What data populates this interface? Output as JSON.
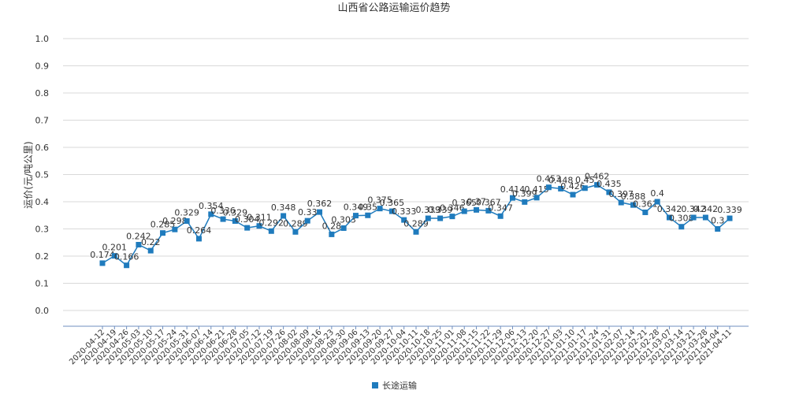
{
  "chart_data": {
    "type": "line",
    "title": "山西省公路运输运价趋势",
    "ylabel": "运价(元/吨公里)",
    "xlabel": "",
    "ylim": [
      0,
      1.0
    ],
    "yticks": [
      "0.0",
      "0.1",
      "0.2",
      "0.3",
      "0.4",
      "0.5",
      "0.6",
      "0.7",
      "0.8",
      "0.9",
      "1.0"
    ],
    "grid": "horizontal",
    "legend": "bottom-center",
    "colors": {
      "series": "#1f7bbd",
      "grid": "#d9d9d9",
      "axis": "#6f8fbf"
    },
    "x": [
      "2020-04-12",
      "2020-04-19",
      "2020-04-26",
      "2020-05-03",
      "2020-05-10",
      "2020-05-17",
      "2020-05-24",
      "2020-05-31",
      "2020-06-07",
      "2020-06-14",
      "2020-06-21",
      "2020-06-28",
      "2020-07-05",
      "2020-07-12",
      "2020-07-19",
      "2020-07-26",
      "2020-08-02",
      "2020-08-09",
      "2020-08-16",
      "2020-08-23",
      "2020-08-30",
      "2020-09-06",
      "2020-09-13",
      "2020-09-20",
      "2020-09-27",
      "2020-10-04",
      "2020-10-11",
      "2020-10-18",
      "2020-10-25",
      "2020-11-01",
      "2020-11-08",
      "2020-11-15",
      "2020-11-22",
      "2020-11-29",
      "2020-12-06",
      "2020-12-13",
      "2020-12-20",
      "2020-12-27",
      "2021-01-03",
      "2021-01-10",
      "2021-01-17",
      "2021-01-24",
      "2021-01-31",
      "2021-02-07",
      "2021-02-14",
      "2021-02-21",
      "2021-02-28",
      "2021-03-07",
      "2021-03-14",
      "2021-03-21",
      "2021-03-28",
      "2021-04-04",
      "2021-04-11"
    ],
    "series": [
      {
        "name": "长途运输",
        "values": [
          0.174,
          0.201,
          0.166,
          0.242,
          0.22,
          0.285,
          0.298,
          0.329,
          0.264,
          0.354,
          0.336,
          0.329,
          0.304,
          0.311,
          0.292,
          0.348,
          0.289,
          0.33,
          0.362,
          0.28,
          0.303,
          0.349,
          0.35,
          0.375,
          0.365,
          0.333,
          0.289,
          0.339,
          0.339,
          0.346,
          0.365,
          0.37,
          0.367,
          0.347,
          0.414,
          0.399,
          0.415,
          0.453,
          0.448,
          0.426,
          0.45,
          0.462,
          0.435,
          0.397,
          0.388,
          0.361,
          0.4,
          0.342,
          0.308,
          0.342,
          0.342,
          0.3,
          0.339
        ],
        "labels": [
          "0.174",
          "0.201",
          "0.166",
          "0.242",
          "0.22",
          "0.285",
          "0.298",
          "0.329",
          "0.264",
          "0.354",
          "0.336",
          "0.329",
          "0.304",
          "0.311",
          "0.292",
          "0.348",
          "0.289",
          "0.33",
          "0.362",
          "0.28",
          "0.303",
          "0.349",
          "0.35",
          "0.375",
          "0.365",
          "0.333",
          "0.289",
          "0.339",
          "0.339",
          "0.346",
          "0.365",
          "0.37",
          "0.367",
          "0.347",
          "0.414",
          "0.399",
          "0.415",
          "0.453",
          "0.448",
          "0.426",
          "0.45",
          "0.462",
          "0.435",
          "0.397",
          "0.388",
          "0.361",
          "0.4",
          "0.342",
          "0.308",
          "0.342",
          "0.342",
          "0.3",
          "0.339"
        ]
      }
    ]
  }
}
